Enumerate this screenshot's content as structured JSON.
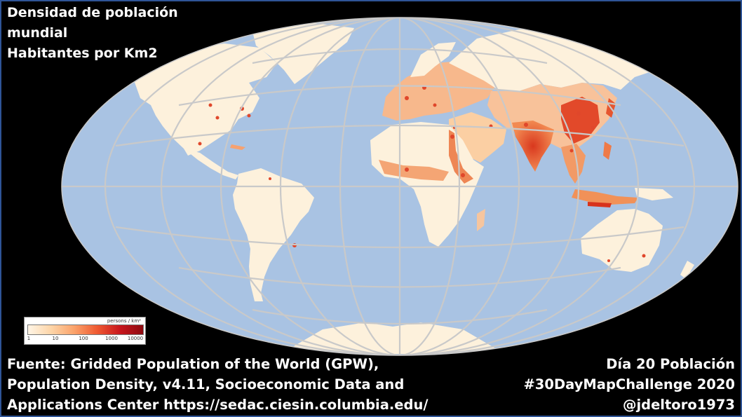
{
  "title": {
    "line1": "Densidad de población",
    "line2": "mundial",
    "line3": "Habitantes por Km2"
  },
  "source": {
    "line1": "Fuente: Gridded Population of the World (GPW),",
    "line2": "Population Density, v4.11, Socioeconomic Data and",
    "line3": "Applications Center https://sedac.ciesin.columbia.edu/"
  },
  "credits": {
    "line1": "Día 20 Población",
    "line2": "#30DayMapChallenge 2020",
    "line3": "@jdeltoro1973"
  },
  "legend": {
    "unit": "persons / km²",
    "ticks": [
      "1",
      "10",
      "100",
      "1000",
      "10000"
    ],
    "colors": [
      "#fff5e6",
      "#fdd5a8",
      "#fba36b",
      "#ef5a32",
      "#c8161d",
      "#8e0a10"
    ]
  },
  "colors": {
    "background": "#000000",
    "ocean": "#a9c3e3",
    "graticule": "#c9c9c9",
    "land_low": "#fdf1dc"
  }
}
